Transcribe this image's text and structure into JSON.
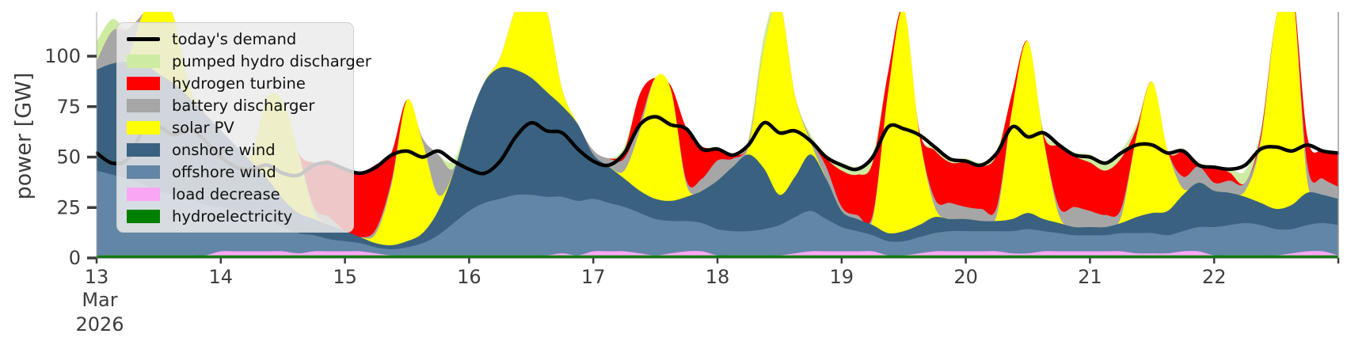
{
  "y_axis": {
    "label": "power [GW]",
    "ticks": [
      0,
      25,
      50,
      75,
      100
    ],
    "range": [
      0,
      122
    ]
  },
  "x_axis": {
    "tick_labels": [
      "13",
      "14",
      "15",
      "16",
      "17",
      "18",
      "19",
      "20",
      "21",
      "22"
    ],
    "month_label": "Mar",
    "year_label": "2026",
    "days_span": 10
  },
  "legend": {
    "items": [
      {
        "label": "today's demand",
        "type": "line",
        "color": "#000000"
      },
      {
        "label": "pumped hydro discharger",
        "type": "patch",
        "color": "#cdeca1"
      },
      {
        "label": "hydrogen turbine",
        "type": "patch",
        "color": "#ff0000"
      },
      {
        "label": "battery discharger",
        "type": "patch",
        "color": "#a6a6a6"
      },
      {
        "label": "solar PV",
        "type": "patch",
        "color": "#ffff00"
      },
      {
        "label": "onshore wind",
        "type": "patch",
        "color": "#3a6280"
      },
      {
        "label": "offshore wind",
        "type": "patch",
        "color": "#6286a5"
      },
      {
        "label": "load decrease",
        "type": "patch",
        "color": "#f9a7f5"
      },
      {
        "label": "hydroelectricity",
        "type": "patch",
        "color": "#008000"
      }
    ]
  },
  "chart_data": {
    "type": "area",
    "title": "",
    "xlabel": "",
    "ylabel": "power [GW]",
    "x_start": "2026-03-13 00:00",
    "x_step_hours": 3,
    "x_range_days": [
      0,
      10
    ],
    "ylim": [
      0,
      122
    ],
    "grid": false,
    "legend_position": "upper left",
    "stack_order": [
      "hydroelectricity",
      "load_decrease",
      "offshore_wind",
      "onshore_wind",
      "solar_pv",
      "battery_discharger",
      "hydrogen_turbine",
      "pumped_hydro_discharger"
    ],
    "series": [
      {
        "name": "hydroelectricity",
        "color": "#008000",
        "values": [
          1.3,
          1.3,
          1.3,
          1.3,
          1.3,
          1.3,
          1.3,
          1.3,
          1.3,
          1.3,
          1.3,
          1.3,
          1.3,
          1.3,
          1.3,
          1.3,
          1.3,
          1.3,
          1.3,
          1.3,
          1.3,
          1.3,
          1.3,
          1.3,
          1.3,
          1.3,
          1.3,
          1.3,
          1.3,
          1.3,
          1.3,
          1.3,
          1.3,
          1.3,
          1.3,
          1.3,
          1.3,
          1.3,
          1.3,
          1.3,
          1.3,
          1.3,
          1.3,
          1.3,
          1.3,
          1.3,
          1.3,
          1.3,
          1.3,
          1.3,
          1.3,
          1.3,
          1.3,
          1.3,
          1.3,
          1.3,
          1.3,
          1.3,
          1.3,
          1.3,
          1.3,
          1.3,
          1.3,
          1.3,
          1.3,
          1.3,
          1.3,
          1.3,
          1.3,
          1.3,
          1.3,
          1.3,
          1.3,
          1.3,
          1.3,
          1.3,
          1.3,
          1.3,
          1.3,
          1.3,
          1.3
        ]
      },
      {
        "name": "load_decrease",
        "color": "#f9a7f5",
        "values": [
          0,
          0,
          0,
          0,
          0,
          0,
          0,
          0,
          2,
          2,
          2,
          2,
          2,
          1,
          2,
          2,
          2,
          2,
          1,
          0,
          0,
          0,
          0,
          0,
          0,
          0,
          0,
          0,
          0,
          0,
          1,
          0,
          2,
          2,
          2,
          1,
          0,
          1,
          2,
          2,
          0,
          0,
          0,
          0,
          0,
          1,
          2,
          2,
          2,
          2,
          2,
          0,
          0,
          1,
          2,
          2,
          2,
          2,
          2,
          1,
          1,
          2,
          2,
          2,
          2,
          2,
          2,
          1,
          1,
          1,
          2,
          2,
          0,
          0,
          0,
          0,
          0,
          1,
          2,
          2,
          0
        ]
      },
      {
        "name": "offshore_wind",
        "color": "#6286a5",
        "values": [
          42,
          40,
          38,
          35,
          32,
          30,
          28,
          25,
          22,
          20,
          18,
          16,
          12,
          10,
          8,
          6,
          5,
          4,
          3,
          3,
          4,
          6,
          10,
          16,
          22,
          26,
          28,
          30,
          30,
          29,
          28,
          27,
          26,
          24,
          22,
          20,
          18,
          16,
          15,
          14,
          13,
          12,
          12,
          13,
          15,
          18,
          20,
          16,
          12,
          10,
          8,
          7,
          7,
          8,
          9,
          10,
          10,
          10,
          10,
          11,
          12,
          10,
          9,
          8,
          8,
          8,
          9,
          10,
          10,
          9,
          10,
          12,
          14,
          15,
          16,
          15,
          13,
          12,
          13,
          14,
          15
        ]
      },
      {
        "name": "onshore_wind",
        "color": "#3a6280",
        "values": [
          50,
          55,
          58,
          60,
          58,
          55,
          50,
          45,
          38,
          32,
          26,
          20,
          14,
          10,
          8,
          7,
          5,
          3,
          2,
          2,
          3,
          5,
          12,
          25,
          45,
          60,
          65,
          62,
          58,
          52,
          45,
          38,
          22,
          18,
          14,
          11,
          10,
          10,
          12,
          16,
          24,
          32,
          38,
          30,
          15,
          20,
          28,
          20,
          8,
          6,
          5,
          4,
          5,
          6,
          8,
          6,
          6,
          5,
          5,
          6,
          8,
          6,
          5,
          4,
          4,
          4,
          5,
          8,
          10,
          12,
          18,
          22,
          18,
          16,
          13,
          11,
          10,
          12,
          16,
          14,
          13
        ]
      },
      {
        "name": "solar_pv",
        "color": "#ffff00",
        "values": [
          0,
          0,
          2,
          25,
          40,
          32,
          5,
          0,
          0,
          0,
          4,
          40,
          48,
          30,
          4,
          0,
          0,
          0,
          5,
          30,
          70,
          45,
          8,
          0,
          0,
          0,
          5,
          30,
          45,
          40,
          8,
          0,
          0,
          0,
          4,
          30,
          60,
          55,
          6,
          0,
          0,
          0,
          4,
          60,
          95,
          40,
          6,
          0,
          0,
          0,
          3,
          70,
          110,
          45,
          5,
          0,
          0,
          0,
          3,
          55,
          85,
          40,
          4,
          0,
          0,
          0,
          3,
          40,
          65,
          30,
          3,
          0,
          0,
          0,
          3,
          30,
          95,
          110,
          6,
          0,
          0
        ]
      },
      {
        "name": "battery_discharger",
        "color": "#a6a6a6",
        "values": [
          4,
          16,
          14,
          0,
          0,
          0,
          0,
          0,
          0,
          0,
          0,
          0,
          0,
          0,
          2,
          4,
          0,
          0,
          2,
          2,
          0,
          2,
          20,
          2,
          0,
          0,
          0,
          0,
          0,
          0,
          0,
          0,
          2,
          4,
          6,
          4,
          0,
          0,
          2,
          6,
          10,
          4,
          2,
          0,
          0,
          0,
          2,
          6,
          2,
          2,
          2,
          0,
          0,
          0,
          4,
          8,
          6,
          6,
          4,
          0,
          0,
          0,
          4,
          10,
          8,
          6,
          4,
          0,
          0,
          0,
          6,
          8,
          4,
          6,
          4,
          2,
          0,
          0,
          8,
          8,
          6
        ]
      },
      {
        "name": "hydrogen_turbine",
        "color": "#ff0000",
        "values": [
          0,
          0,
          0,
          0,
          0,
          0,
          0,
          0,
          0,
          0,
          0,
          0,
          0,
          0,
          22,
          28,
          30,
          32,
          32,
          14,
          0,
          0,
          0,
          0,
          0,
          0,
          0,
          0,
          0,
          0,
          0,
          0,
          0,
          0,
          4,
          14,
          0,
          2,
          26,
          16,
          6,
          2,
          0,
          0,
          0,
          0,
          0,
          4,
          18,
          20,
          26,
          10,
          0,
          2,
          24,
          20,
          22,
          21,
          26,
          8,
          0,
          2,
          30,
          25,
          24,
          22,
          25,
          4,
          0,
          0,
          12,
          0,
          8,
          4,
          0,
          2,
          0,
          0,
          14,
          14,
          16
        ]
      },
      {
        "name": "pumped_hydro_discharger",
        "color": "#cdeca1",
        "values": [
          10,
          6,
          0,
          0,
          0,
          0,
          0,
          0,
          0,
          0,
          0,
          0,
          0,
          0,
          0,
          0,
          0,
          0,
          0,
          0,
          0,
          0,
          0,
          4,
          0,
          0,
          0,
          0,
          0,
          0,
          0,
          0,
          0,
          0,
          2,
          0,
          0,
          0,
          0,
          0,
          0,
          0,
          2,
          6,
          0,
          0,
          2,
          2,
          4,
          4,
          4,
          0,
          0,
          0,
          2,
          2,
          2,
          2,
          2,
          0,
          0,
          2,
          2,
          2,
          4,
          4,
          4,
          2,
          0,
          0,
          2,
          2,
          0,
          2,
          6,
          2,
          0,
          0,
          0,
          0,
          0
        ]
      }
    ],
    "demand_line": {
      "name": "today's demand",
      "color": "#000000",
      "width": 4.5,
      "values": [
        52,
        47,
        49,
        63,
        65,
        61,
        64,
        58,
        50,
        45,
        44,
        46,
        42,
        41,
        46,
        47,
        44,
        42,
        45,
        51,
        53,
        50,
        53,
        48,
        44,
        42,
        48,
        60,
        67,
        63,
        62,
        54,
        48,
        46,
        52,
        66,
        70,
        66,
        64,
        54,
        54,
        51,
        56,
        67,
        62,
        63,
        58,
        50,
        46,
        44,
        50,
        65,
        64,
        61,
        55,
        49,
        48,
        46,
        52,
        65,
        60,
        62,
        56,
        51,
        50,
        47,
        52,
        56,
        56,
        52,
        53,
        46,
        45,
        44,
        46,
        54,
        55,
        53,
        56,
        53,
        52
      ]
    }
  }
}
